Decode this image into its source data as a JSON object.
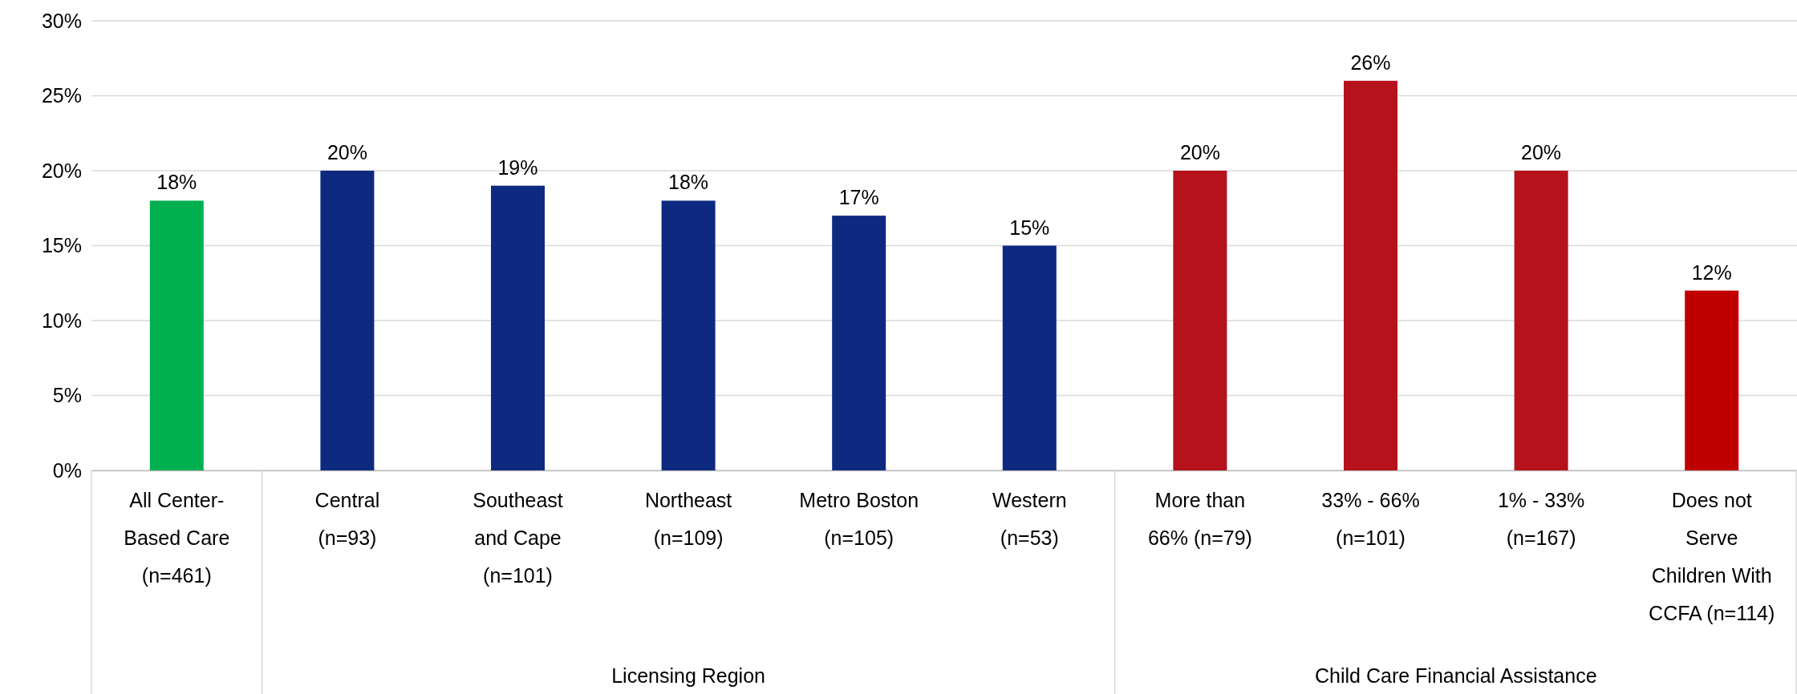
{
  "chart_data": {
    "type": "bar",
    "categories": [
      "All Center-\nBased Care\n(n=461)",
      "Central\n(n=93)",
      "Southeast\nand Cape\n(n=101)",
      "Northeast\n(n=109)",
      "Metro Boston\n(n=105)",
      "Western\n(n=53)",
      "More than\n66% (n=79)",
      "33% - 66%\n(n=101)",
      "1% - 33%\n(n=167)",
      "Does not\nServe\nChildren With\nCCFA (n=114)"
    ],
    "values": [
      18,
      20,
      19,
      18,
      17,
      15,
      20,
      26,
      20,
      12
    ],
    "colors": [
      "#00b050",
      "#0e2a80",
      "#0e2a80",
      "#0e2a80",
      "#0e2a80",
      "#0e2a80",
      "#b5121b",
      "#b5121b",
      "#b5121b",
      "#c00000"
    ],
    "ylim": [
      0,
      30
    ],
    "yticks": [
      {
        "value": 0,
        "label": "0%"
      },
      {
        "value": 5,
        "label": "5%"
      },
      {
        "value": 10,
        "label": "10%"
      },
      {
        "value": 15,
        "label": "15%"
      },
      {
        "value": 20,
        "label": "20%"
      },
      {
        "value": 25,
        "label": "25%"
      },
      {
        "value": 30,
        "label": "30%"
      }
    ],
    "grid": "y",
    "value_labels": [
      "18%",
      "20%",
      "19%",
      "18%",
      "17%",
      "15%",
      "20%",
      "26%",
      "20%",
      "12%"
    ],
    "annotations": [
      "Licensing Region",
      "Child Care Financial Assistance"
    ]
  }
}
